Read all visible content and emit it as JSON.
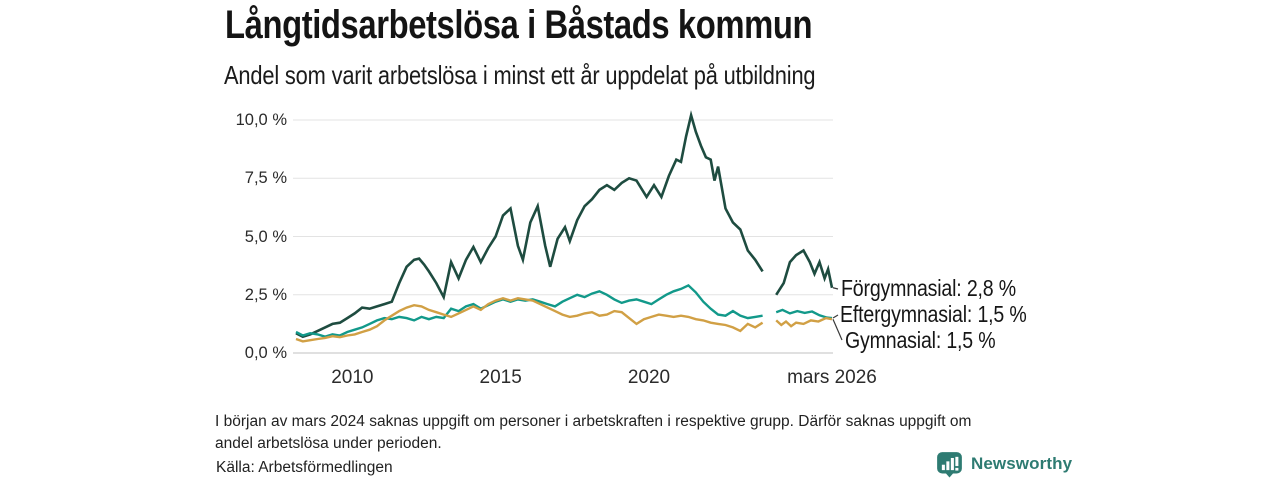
{
  "header": {
    "title": "Långtidsarbetslösa i Båstads kommun",
    "subtitle": "Andel som varit arbetslösa i minst ett år uppdelat på utbildning"
  },
  "chart_data": {
    "type": "line",
    "title": "Långtidsarbetslösa i Båstads kommun",
    "subtitle": "Andel som varit arbetslösa i minst ett år uppdelat på utbildning",
    "xlabel": "",
    "ylabel": "",
    "x_unit": "decimal_year",
    "x_range": [
      2008.1,
      2026.17
    ],
    "y_range": [
      0,
      10
    ],
    "grid": "horizontal",
    "legend_position": "right-end-labels",
    "gap_note": "data missing around March 2024",
    "y_ticks": [
      {
        "value": 0,
        "label": "0,0 %"
      },
      {
        "value": 2.5,
        "label": "2,5 %"
      },
      {
        "value": 5,
        "label": "5,0 %"
      },
      {
        "value": 7.5,
        "label": "7,5 %"
      },
      {
        "value": 10,
        "label": "10,0 %"
      }
    ],
    "x_ticks": [
      {
        "value": 2010,
        "label": "2010"
      },
      {
        "value": 2015,
        "label": "2015"
      },
      {
        "value": 2020,
        "label": "2020"
      },
      {
        "value": 2026.17,
        "label": "mars 2026"
      }
    ],
    "series": [
      {
        "name": "Förgymnasial",
        "label": "Förgymnasial: 2,8 %",
        "latest_value": "2,8 %",
        "color": "#1e4c40",
        "points": [
          [
            2008.1,
            0.85
          ],
          [
            2008.33,
            0.7
          ],
          [
            2008.58,
            0.8
          ],
          [
            2008.83,
            0.95
          ],
          [
            2009.08,
            1.1
          ],
          [
            2009.33,
            1.25
          ],
          [
            2009.58,
            1.3
          ],
          [
            2009.83,
            1.5
          ],
          [
            2010.08,
            1.7
          ],
          [
            2010.33,
            1.95
          ],
          [
            2010.58,
            1.9
          ],
          [
            2010.83,
            2.0
          ],
          [
            2011.08,
            2.1
          ],
          [
            2011.33,
            2.2
          ],
          [
            2011.58,
            3.0
          ],
          [
            2011.83,
            3.7
          ],
          [
            2012.08,
            4.0
          ],
          [
            2012.25,
            4.05
          ],
          [
            2012.42,
            3.8
          ],
          [
            2012.58,
            3.5
          ],
          [
            2012.83,
            3.0
          ],
          [
            2013.08,
            2.4
          ],
          [
            2013.33,
            3.9
          ],
          [
            2013.58,
            3.2
          ],
          [
            2013.83,
            4.0
          ],
          [
            2014.08,
            4.55
          ],
          [
            2014.33,
            3.9
          ],
          [
            2014.58,
            4.5
          ],
          [
            2014.83,
            5.0
          ],
          [
            2015.08,
            5.9
          ],
          [
            2015.33,
            6.2
          ],
          [
            2015.58,
            4.6
          ],
          [
            2015.75,
            4.0
          ],
          [
            2016.0,
            5.6
          ],
          [
            2016.25,
            6.3
          ],
          [
            2016.5,
            4.6
          ],
          [
            2016.67,
            3.7
          ],
          [
            2016.92,
            4.9
          ],
          [
            2017.17,
            5.4
          ],
          [
            2017.33,
            4.8
          ],
          [
            2017.58,
            5.7
          ],
          [
            2017.83,
            6.3
          ],
          [
            2018.08,
            6.6
          ],
          [
            2018.33,
            7.0
          ],
          [
            2018.58,
            7.2
          ],
          [
            2018.83,
            7.0
          ],
          [
            2019.08,
            7.3
          ],
          [
            2019.33,
            7.5
          ],
          [
            2019.58,
            7.4
          ],
          [
            2019.92,
            6.7
          ],
          [
            2020.17,
            7.2
          ],
          [
            2020.42,
            6.7
          ],
          [
            2020.67,
            7.6
          ],
          [
            2020.92,
            8.3
          ],
          [
            2021.08,
            8.2
          ],
          [
            2021.25,
            9.3
          ],
          [
            2021.42,
            10.2
          ],
          [
            2021.58,
            9.5
          ],
          [
            2021.75,
            8.9
          ],
          [
            2021.92,
            8.4
          ],
          [
            2022.08,
            8.3
          ],
          [
            2022.21,
            7.4
          ],
          [
            2022.33,
            8.0
          ],
          [
            2022.58,
            6.2
          ],
          [
            2022.83,
            5.6
          ],
          [
            2023.08,
            5.3
          ],
          [
            2023.33,
            4.4
          ],
          [
            2023.58,
            4.0
          ],
          [
            2023.83,
            3.5
          ],
          null,
          [
            2024.29,
            2.5
          ],
          [
            2024.54,
            3.0
          ],
          [
            2024.75,
            3.9
          ],
          [
            2024.96,
            4.2
          ],
          [
            2025.21,
            4.4
          ],
          [
            2025.42,
            3.9
          ],
          [
            2025.58,
            3.4
          ],
          [
            2025.75,
            3.9
          ],
          [
            2025.92,
            3.2
          ],
          [
            2026.04,
            3.6
          ],
          [
            2026.17,
            2.8
          ]
        ]
      },
      {
        "name": "Eftergymnasial",
        "label": "Eftergymnasial: 1,5 %",
        "latest_value": "1,5 %",
        "color": "#12998a",
        "points": [
          [
            2008.1,
            0.9
          ],
          [
            2008.33,
            0.75
          ],
          [
            2008.58,
            0.85
          ],
          [
            2008.83,
            0.8
          ],
          [
            2009.08,
            0.7
          ],
          [
            2009.33,
            0.8
          ],
          [
            2009.58,
            0.75
          ],
          [
            2009.83,
            0.9
          ],
          [
            2010.08,
            1.0
          ],
          [
            2010.33,
            1.1
          ],
          [
            2010.58,
            1.25
          ],
          [
            2010.83,
            1.4
          ],
          [
            2011.08,
            1.5
          ],
          [
            2011.33,
            1.45
          ],
          [
            2011.58,
            1.55
          ],
          [
            2011.83,
            1.5
          ],
          [
            2012.08,
            1.4
          ],
          [
            2012.33,
            1.55
          ],
          [
            2012.58,
            1.45
          ],
          [
            2012.83,
            1.55
          ],
          [
            2013.08,
            1.5
          ],
          [
            2013.33,
            1.9
          ],
          [
            2013.58,
            1.8
          ],
          [
            2013.83,
            2.0
          ],
          [
            2014.08,
            2.1
          ],
          [
            2014.33,
            1.9
          ],
          [
            2014.58,
            2.05
          ],
          [
            2014.83,
            2.2
          ],
          [
            2015.08,
            2.3
          ],
          [
            2015.33,
            2.2
          ],
          [
            2015.58,
            2.3
          ],
          [
            2015.83,
            2.25
          ],
          [
            2016.08,
            2.3
          ],
          [
            2016.33,
            2.2
          ],
          [
            2016.58,
            2.1
          ],
          [
            2016.83,
            2.0
          ],
          [
            2017.08,
            2.2
          ],
          [
            2017.33,
            2.35
          ],
          [
            2017.58,
            2.5
          ],
          [
            2017.83,
            2.4
          ],
          [
            2018.08,
            2.55
          ],
          [
            2018.33,
            2.65
          ],
          [
            2018.58,
            2.5
          ],
          [
            2018.83,
            2.3
          ],
          [
            2019.08,
            2.15
          ],
          [
            2019.33,
            2.25
          ],
          [
            2019.58,
            2.3
          ],
          [
            2019.83,
            2.2
          ],
          [
            2020.08,
            2.1
          ],
          [
            2020.33,
            2.3
          ],
          [
            2020.58,
            2.5
          ],
          [
            2020.83,
            2.65
          ],
          [
            2021.08,
            2.75
          ],
          [
            2021.33,
            2.9
          ],
          [
            2021.58,
            2.6
          ],
          [
            2021.83,
            2.2
          ],
          [
            2022.08,
            1.9
          ],
          [
            2022.33,
            1.65
          ],
          [
            2022.58,
            1.6
          ],
          [
            2022.83,
            1.8
          ],
          [
            2023.08,
            1.6
          ],
          [
            2023.33,
            1.5
          ],
          [
            2023.58,
            1.55
          ],
          [
            2023.83,
            1.6
          ],
          null,
          [
            2024.29,
            1.75
          ],
          [
            2024.5,
            1.85
          ],
          [
            2024.75,
            1.7
          ],
          [
            2025.0,
            1.8
          ],
          [
            2025.25,
            1.72
          ],
          [
            2025.5,
            1.78
          ],
          [
            2025.75,
            1.62
          ],
          [
            2026.0,
            1.52
          ],
          [
            2026.17,
            1.5
          ]
        ]
      },
      {
        "name": "Gymnasial",
        "label": "Gymnasial: 1,5 %",
        "latest_value": "1,5 %",
        "color": "#d1a045",
        "points": [
          [
            2008.1,
            0.6
          ],
          [
            2008.33,
            0.5
          ],
          [
            2008.58,
            0.55
          ],
          [
            2008.83,
            0.6
          ],
          [
            2009.08,
            0.65
          ],
          [
            2009.33,
            0.72
          ],
          [
            2009.58,
            0.68
          ],
          [
            2009.83,
            0.75
          ],
          [
            2010.08,
            0.8
          ],
          [
            2010.33,
            0.9
          ],
          [
            2010.58,
            1.0
          ],
          [
            2010.83,
            1.15
          ],
          [
            2011.08,
            1.4
          ],
          [
            2011.33,
            1.6
          ],
          [
            2011.58,
            1.8
          ],
          [
            2011.83,
            1.95
          ],
          [
            2012.08,
            2.05
          ],
          [
            2012.33,
            2.0
          ],
          [
            2012.58,
            1.85
          ],
          [
            2012.83,
            1.75
          ],
          [
            2013.08,
            1.65
          ],
          [
            2013.33,
            1.55
          ],
          [
            2013.58,
            1.7
          ],
          [
            2013.83,
            1.85
          ],
          [
            2014.08,
            2.0
          ],
          [
            2014.33,
            1.85
          ],
          [
            2014.58,
            2.1
          ],
          [
            2014.83,
            2.25
          ],
          [
            2015.08,
            2.35
          ],
          [
            2015.33,
            2.25
          ],
          [
            2015.58,
            2.35
          ],
          [
            2015.83,
            2.3
          ],
          [
            2016.08,
            2.25
          ],
          [
            2016.33,
            2.1
          ],
          [
            2016.58,
            1.95
          ],
          [
            2016.83,
            1.8
          ],
          [
            2017.08,
            1.65
          ],
          [
            2017.33,
            1.55
          ],
          [
            2017.58,
            1.6
          ],
          [
            2017.83,
            1.7
          ],
          [
            2018.08,
            1.75
          ],
          [
            2018.33,
            1.6
          ],
          [
            2018.58,
            1.65
          ],
          [
            2018.83,
            1.8
          ],
          [
            2019.08,
            1.75
          ],
          [
            2019.33,
            1.5
          ],
          [
            2019.58,
            1.25
          ],
          [
            2019.83,
            1.45
          ],
          [
            2020.08,
            1.55
          ],
          [
            2020.33,
            1.65
          ],
          [
            2020.58,
            1.6
          ],
          [
            2020.83,
            1.55
          ],
          [
            2021.08,
            1.6
          ],
          [
            2021.33,
            1.55
          ],
          [
            2021.58,
            1.45
          ],
          [
            2021.83,
            1.4
          ],
          [
            2022.08,
            1.3
          ],
          [
            2022.33,
            1.25
          ],
          [
            2022.58,
            1.2
          ],
          [
            2022.83,
            1.1
          ],
          [
            2023.08,
            0.95
          ],
          [
            2023.33,
            1.25
          ],
          [
            2023.58,
            1.1
          ],
          [
            2023.83,
            1.3
          ],
          null,
          [
            2024.29,
            1.4
          ],
          [
            2024.46,
            1.2
          ],
          [
            2024.62,
            1.35
          ],
          [
            2024.79,
            1.15
          ],
          [
            2024.96,
            1.3
          ],
          [
            2025.21,
            1.25
          ],
          [
            2025.46,
            1.4
          ],
          [
            2025.71,
            1.35
          ],
          [
            2025.96,
            1.5
          ],
          [
            2026.17,
            1.45
          ]
        ]
      }
    ],
    "colors": {
      "grid": "#e3e3e3",
      "baseline": "#c0c0c0",
      "connector": "#3a3a3a"
    }
  },
  "footnote_lines": [
    "I början av mars 2024 saknas uppgift om personer i arbetskraften i respektive grupp. Därför saknas uppgift om",
    "andel arbetslösa under perioden."
  ],
  "source": "Källa: Arbetsförmedlingen",
  "branding": {
    "label": "Newsworthy",
    "color": "#2e7b72",
    "icon": "bar-chart-bubble-icon"
  }
}
